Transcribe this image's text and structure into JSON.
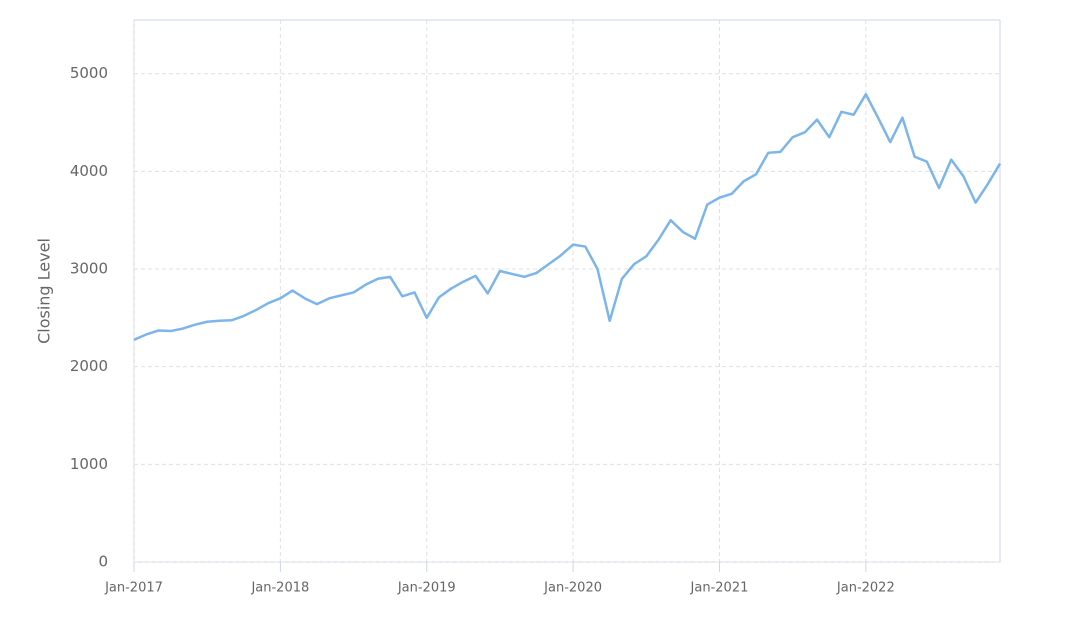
{
  "chart_data": {
    "type": "line",
    "y_label": "Closing Level",
    "x": [
      "2017-01",
      "2017-02",
      "2017-03",
      "2017-04",
      "2017-05",
      "2017-06",
      "2017-07",
      "2017-08",
      "2017-09",
      "2017-10",
      "2017-11",
      "2017-12",
      "2018-01",
      "2018-02",
      "2018-03",
      "2018-04",
      "2018-05",
      "2018-06",
      "2018-07",
      "2018-08",
      "2018-09",
      "2018-10",
      "2018-11",
      "2018-12",
      "2019-01",
      "2019-02",
      "2019-03",
      "2019-04",
      "2019-05",
      "2019-06",
      "2019-07",
      "2019-08",
      "2019-09",
      "2019-10",
      "2019-11",
      "2019-12",
      "2020-01",
      "2020-02",
      "2020-03",
      "2020-04",
      "2020-05",
      "2020-06",
      "2020-07",
      "2020-08",
      "2020-09",
      "2020-10",
      "2020-11",
      "2020-12",
      "2021-01",
      "2021-02",
      "2021-03",
      "2021-04",
      "2021-05",
      "2021-06",
      "2021-07",
      "2021-08",
      "2021-09",
      "2021-10",
      "2021-11",
      "2021-12",
      "2022-01",
      "2022-02",
      "2022-03",
      "2022-04",
      "2022-05",
      "2022-06",
      "2022-07",
      "2022-08",
      "2022-09",
      "2022-10",
      "2022-11",
      "2022-12"
    ],
    "series": [
      {
        "name": "Closing Level",
        "color": "#7cb5ec",
        "values": [
          2275,
          2330,
          2370,
          2365,
          2390,
          2430,
          2460,
          2470,
          2475,
          2520,
          2580,
          2650,
          2700,
          2780,
          2700,
          2640,
          2700,
          2730,
          2760,
          2840,
          2900,
          2920,
          2720,
          2760,
          2500,
          2710,
          2800,
          2870,
          2930,
          2750,
          2980,
          2950,
          2920,
          2960,
          3050,
          3140,
          3250,
          3230,
          3000,
          2470,
          2900,
          3050,
          3130,
          3300,
          3500,
          3380,
          3310,
          3660,
          3730,
          3770,
          3900,
          3970,
          4190,
          4200,
          4350,
          4400,
          4530,
          4350,
          4610,
          4580,
          4790,
          4550,
          4300,
          4550,
          4150,
          4100,
          3830,
          4120,
          3950,
          3680,
          3870,
          4080
        ]
      }
    ],
    "xlim": [
      "2017-01",
      "2022-12"
    ],
    "xticks": [
      {
        "value": "2017-01",
        "label": "Jan-2017"
      },
      {
        "value": "2018-01",
        "label": "Jan-2018"
      },
      {
        "value": "2019-01",
        "label": "Jan-2019"
      },
      {
        "value": "2020-01",
        "label": "Jan-2020"
      },
      {
        "value": "2021-01",
        "label": "Jan-2021"
      },
      {
        "value": "2022-01",
        "label": "Jan-2022"
      }
    ],
    "ylim": [
      0,
      5550
    ],
    "yticks": [
      0,
      1000,
      2000,
      3000,
      4000,
      5000
    ],
    "grid": true
  }
}
